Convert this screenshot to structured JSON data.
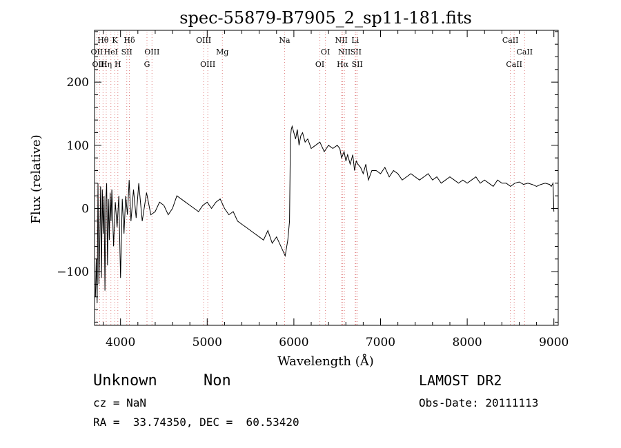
{
  "chart_data": {
    "type": "line",
    "title": "spec-55879-B7905_2_sp11-181.fits",
    "xlabel": "Wavelength (Å)",
    "ylabel": "Flux (relative)",
    "xlim": [
      3700,
      9050
    ],
    "ylim": [
      -185,
      282
    ],
    "xticks": [
      4000,
      5000,
      6000,
      7000,
      8000,
      9000
    ],
    "yticks": [
      -100,
      0,
      100,
      200
    ],
    "series": [
      {
        "x": [
          3710,
          3720,
          3730,
          3740,
          3750,
          3760,
          3770,
          3780,
          3790,
          3800,
          3810,
          3820,
          3830,
          3840,
          3850,
          3860,
          3870,
          3880,
          3890,
          3900,
          3920,
          3940,
          3960,
          3980,
          4000,
          4020,
          4040,
          4060,
          4080,
          4100,
          4120,
          4150,
          4180,
          4210,
          4250,
          4300,
          4350,
          4400,
          4450,
          4500,
          4550,
          4600,
          4650,
          4700,
          4750,
          4800,
          4850,
          4900,
          4950,
          5000,
          5050,
          5100,
          5150,
          5200,
          5250,
          5300,
          5350,
          5400,
          5450,
          5500,
          5550,
          5600,
          5650,
          5700,
          5750,
          5800,
          5850,
          5900,
          5930,
          5950,
          5960,
          5970,
          5980,
          6000,
          6020,
          6040,
          6060,
          6080,
          6100,
          6130,
          6160,
          6200,
          6250,
          6300,
          6350,
          6400,
          6450,
          6500,
          6530,
          6550,
          6580,
          6600,
          6620,
          6650,
          6680,
          6700,
          6720,
          6740,
          6770,
          6800,
          6830,
          6860,
          6900,
          6950,
          7000,
          7050,
          7100,
          7150,
          7200,
          7250,
          7300,
          7350,
          7400,
          7450,
          7500,
          7550,
          7600,
          7650,
          7700,
          7750,
          7800,
          7850,
          7900,
          7950,
          8000,
          8050,
          8100,
          8150,
          8200,
          8250,
          8300,
          8350,
          8400,
          8450,
          8500,
          8550,
          8600,
          8650,
          8700,
          8750,
          8800,
          8850,
          8900,
          8950,
          8970,
          8990,
          9000
        ],
        "y": [
          -140,
          -80,
          -150,
          40,
          -120,
          -60,
          35,
          -110,
          30,
          -40,
          20,
          -130,
          10,
          40,
          -90,
          15,
          -50,
          25,
          -20,
          30,
          -60,
          10,
          -30,
          20,
          -110,
          15,
          -40,
          20,
          -10,
          45,
          -20,
          30,
          -15,
          40,
          -20,
          25,
          -10,
          -5,
          10,
          5,
          -10,
          0,
          20,
          15,
          10,
          5,
          0,
          -5,
          5,
          10,
          0,
          10,
          15,
          0,
          -10,
          -5,
          -20,
          -25,
          -30,
          -35,
          -40,
          -45,
          -50,
          -35,
          -55,
          -45,
          -60,
          -75,
          -50,
          -20,
          110,
          125,
          130,
          120,
          110,
          125,
          100,
          115,
          120,
          105,
          110,
          95,
          100,
          105,
          90,
          100,
          95,
          100,
          95,
          80,
          90,
          75,
          85,
          70,
          85,
          60,
          75,
          70,
          65,
          55,
          70,
          45,
          60,
          60,
          55,
          65,
          50,
          60,
          55,
          45,
          50,
          55,
          50,
          45,
          50,
          55,
          45,
          50,
          40,
          45,
          50,
          45,
          40,
          45,
          40,
          45,
          50,
          40,
          45,
          40,
          35,
          45,
          40,
          40,
          35,
          40,
          42,
          38,
          40,
          38,
          35,
          38,
          40,
          38,
          35,
          40,
          -5
        ]
      }
    ],
    "line_markers": [
      {
        "label": "Hθ",
        "x": 3798,
        "row": 0,
        "color": "#e0a0a0"
      },
      {
        "label": "K",
        "x": 3934,
        "row": 0,
        "color": "#e0a0a0"
      },
      {
        "label": "Hδ",
        "x": 4102,
        "row": 0,
        "color": "#e0a0a0"
      },
      {
        "label": "OII",
        "x": 3727,
        "row": 1,
        "color": "#e0a0a0"
      },
      {
        "label": "HeI",
        "x": 3889,
        "row": 1,
        "color": "#e0a0a0"
      },
      {
        "label": "SII",
        "x": 4072,
        "row": 1,
        "color": "#e0a0a0"
      },
      {
        "label": "OIII",
        "x": 4363,
        "row": 1,
        "color": "#e0a0a0"
      },
      {
        "label": "OIII",
        "x": 3760,
        "row": 2,
        "color": "#e0a0a0"
      },
      {
        "label": "Hη",
        "x": 3835,
        "row": 2,
        "color": "#e0a0a0"
      },
      {
        "label": "H",
        "x": 3969,
        "row": 2,
        "color": "#e0a0a0"
      },
      {
        "label": "G",
        "x": 4305,
        "row": 2,
        "color": "#e0a0a0"
      },
      {
        "label": "OIII",
        "x": 4959,
        "row": 0,
        "color": "#e0a0a0"
      },
      {
        "label": "Mg",
        "x": 5175,
        "row": 1,
        "color": "#e0a0a0"
      },
      {
        "label": "OIII",
        "x": 5007,
        "row": 2,
        "color": "#e0a0a0"
      },
      {
        "label": "Na",
        "x": 5893,
        "row": 0,
        "color": "#e0a0a0"
      },
      {
        "label": "OI",
        "x": 6364,
        "row": 1,
        "color": "#e0a0a0"
      },
      {
        "label": "OI",
        "x": 6300,
        "row": 2,
        "color": "#e0a0a0"
      },
      {
        "label": "NII",
        "x": 6548,
        "row": 0,
        "color": "#e0a0a0"
      },
      {
        "label": "Li",
        "x": 6708,
        "row": 0,
        "color": "#e0a0a0"
      },
      {
        "label": "NII",
        "x": 6583,
        "row": 1,
        "color": "#e0a0a0"
      },
      {
        "label": "SII",
        "x": 6716,
        "row": 1,
        "color": "#e0a0a0"
      },
      {
        "label": "Hα",
        "x": 6563,
        "row": 2,
        "color": "#e0a0a0"
      },
      {
        "label": "SII",
        "x": 6731,
        "row": 2,
        "color": "#e0a0a0"
      },
      {
        "label": "CaII",
        "x": 8498,
        "row": 0,
        "color": "#e0a0a0"
      },
      {
        "label": "CaII",
        "x": 8662,
        "row": 1,
        "color": "#e0a0a0"
      },
      {
        "label": "CaII",
        "x": 8542,
        "row": 2,
        "color": "#e0a0a0"
      }
    ],
    "grid": false
  },
  "info": {
    "object_class": "Unknown",
    "subclass": "Non",
    "redshift": "cz = NaN",
    "coords": "RA =  33.74350, DEC =  60.53420",
    "survey": "LAMOST DR2",
    "obs_date": "Obs-Date: 20111113"
  },
  "colors": {
    "line": "#000000",
    "marker": "#e08080"
  }
}
